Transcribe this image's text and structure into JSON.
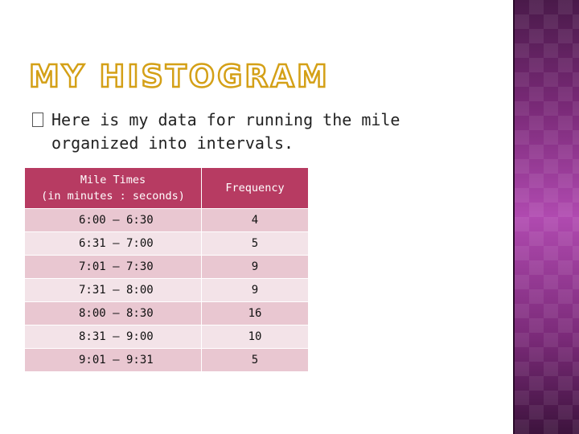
{
  "slide": {
    "title": "MY HISTOGRAM",
    "bullet_line1": "Here is my data for running the mile",
    "bullet_line2": "organized into intervals."
  },
  "table": {
    "headers": [
      "Mile Times",
      "(in minutes : seconds)",
      "Frequency"
    ],
    "rows": [
      {
        "interval": "6:00 – 6:30",
        "frequency": "4"
      },
      {
        "interval": "6:31 – 7:00",
        "frequency": "5"
      },
      {
        "interval": "7:01 – 7:30",
        "frequency": "9"
      },
      {
        "interval": "7:31 – 8:00",
        "frequency": "9"
      },
      {
        "interval": "8:00 – 8:30",
        "frequency": "16"
      },
      {
        "interval": "8:31 – 9:00",
        "frequency": "10"
      },
      {
        "interval": "9:01 – 9:31",
        "frequency": "5"
      }
    ]
  },
  "colors": {
    "title_outline": "#d4a017",
    "header_bg": "#b73b62",
    "row_odd_bg": "#e9c7d1",
    "row_even_bg": "#f3e3e8",
    "sidebar_mid": "#b04ab0",
    "sidebar_dark": "#3d133d"
  },
  "icons": {
    "bullet": "square-bullet-icon"
  }
}
